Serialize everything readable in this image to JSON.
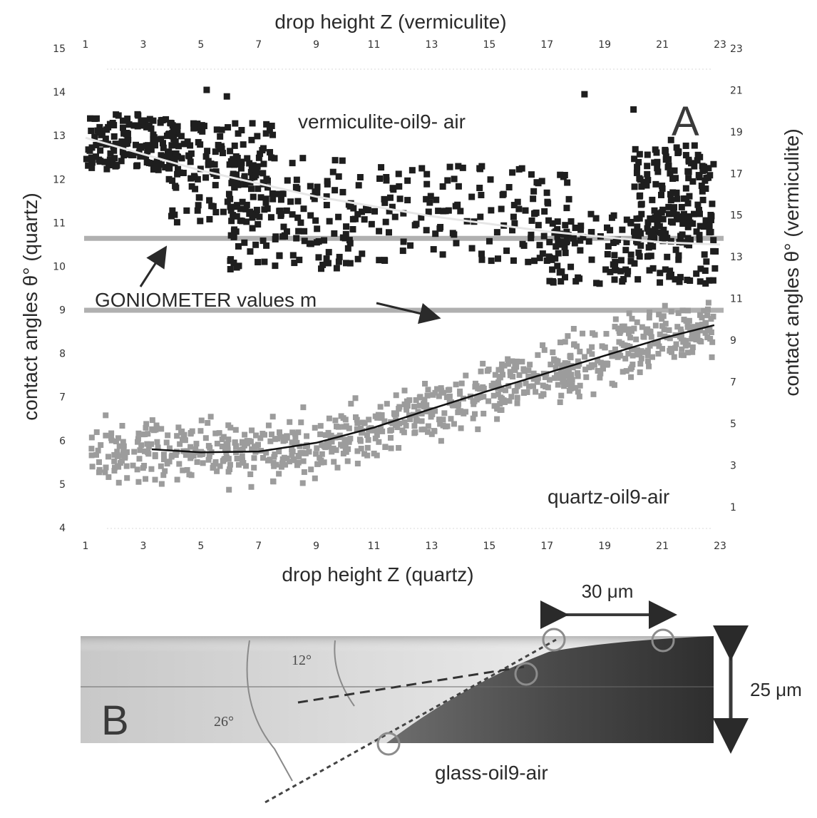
{
  "chart_data": [
    {
      "panel": "A",
      "type": "scatter",
      "title": "",
      "x_top_label": "drop height Z (vermiculite)",
      "x_bottom_label": "drop height Z (quartz)",
      "y_left_label": "contact angles θ° (quartz)",
      "y_right_label": "contact angles θ° (vermiculite)",
      "x_ticks": [
        "1",
        "3",
        "5",
        "7",
        "9",
        "11",
        "13",
        "15",
        "17",
        "19",
        "21",
        "23"
      ],
      "y_left_ticks": [
        "4",
        "5",
        "6",
        "7",
        "8",
        "9",
        "10",
        "11",
        "12",
        "13",
        "14",
        "15"
      ],
      "y_right_ticks": [
        "1",
        "3",
        "5",
        "7",
        "9",
        "11",
        "13",
        "15",
        "17",
        "19",
        "21",
        "23"
      ],
      "xlim": [
        1,
        23
      ],
      "ylim_left": [
        4,
        15
      ],
      "ylim_right": [
        0,
        23
      ],
      "grid": false,
      "annotations": {
        "goniometer": "GONIOMETER values m",
        "vermiculite_series": "vermiculite-oil9- air",
        "quartz_series": "quartz-oil9-air"
      },
      "goniometer_values_left_axis": [
        10.65,
        9.0
      ],
      "series": [
        {
          "name": "vermiculite-oil9- air",
          "color": "#1e1e1e",
          "point_count": 900,
          "trend": {
            "x": [
              1,
              5,
              9,
              13,
              17,
              21,
              23
            ],
            "y": [
              12.95,
              12.2,
              11.6,
              11.15,
              10.8,
              10.55,
              10.5
            ]
          },
          "bands": [
            {
              "x": [
                1,
                4.2
              ],
              "y": [
                12.2,
                13.5
              ]
            },
            {
              "x": [
                3.8,
                7.5
              ],
              "y": [
                11.0,
                13.3
              ]
            },
            {
              "x": [
                6,
                10.5
              ],
              "y": [
                9.9,
                12.5
              ]
            },
            {
              "x": [
                10,
                18
              ],
              "y": [
                10.1,
                12.3
              ]
            },
            {
              "x": [
                17,
                23
              ],
              "y": [
                9.6,
                11.2
              ]
            },
            {
              "x": [
                20,
                22.8
              ],
              "y": [
                10.5,
                12.8
              ]
            }
          ]
        },
        {
          "name": "quartz-oil9-air",
          "color": "#9c9c9c",
          "point_count": 850,
          "trend": {
            "x": [
              3.3,
              5,
              7,
              9,
              11,
              13,
              15,
              17,
              19,
              21,
              22.8
            ],
            "y": [
              5.8,
              5.73,
              5.75,
              5.95,
              6.3,
              6.73,
              7.15,
              7.55,
              7.95,
              8.35,
              8.65
            ]
          },
          "scatter_spread": 0.7
        }
      ]
    },
    {
      "panel": "B",
      "type": "image",
      "title": "",
      "label": "glass-oil9-air",
      "angles": [
        "12°",
        "26°"
      ],
      "width_label": "30 μm",
      "height_label": "25 μm"
    }
  ]
}
